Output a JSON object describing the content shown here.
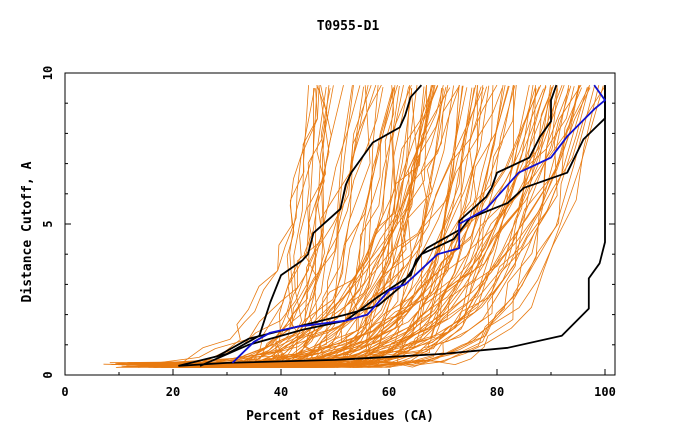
{
  "chart_data": {
    "type": "line",
    "title": "T0955-D1",
    "xlabel": "Percent of Residues (CA)",
    "ylabel": "Distance Cutoff, A",
    "xlim": [
      0,
      100
    ],
    "ylim": [
      0,
      10
    ],
    "x_ticks": [
      "0",
      "20",
      "40",
      "60",
      "80",
      "100"
    ],
    "y_ticks": [
      "0",
      "5",
      "10"
    ],
    "colors": {
      "background_curves": "#e87a10",
      "black_curves": "#000000",
      "highlight_curve": "#1010d0",
      "axis": "#000000"
    },
    "series": [
      {
        "name": "black-curve-1",
        "color": "#000000",
        "points": [
          [
            21,
            0.3
          ],
          [
            30,
            0.7
          ],
          [
            36,
            1.3
          ],
          [
            38,
            2.4
          ],
          [
            40,
            3.3
          ],
          [
            44,
            3.8
          ],
          [
            45,
            4.0
          ],
          [
            46,
            4.7
          ],
          [
            51,
            5.5
          ],
          [
            52,
            6.3
          ],
          [
            53,
            6.7
          ],
          [
            57,
            7.7
          ],
          [
            62,
            8.2
          ],
          [
            63,
            8.6
          ],
          [
            64,
            9.2
          ],
          [
            66,
            9.6
          ]
        ]
      },
      {
        "name": "black-curve-2",
        "color": "#000000",
        "points": [
          [
            25,
            0.3
          ],
          [
            34,
            1.0
          ],
          [
            44,
            1.5
          ],
          [
            52,
            1.8
          ],
          [
            55,
            2.2
          ],
          [
            58,
            2.6
          ],
          [
            64,
            3.3
          ],
          [
            65,
            3.8
          ],
          [
            67,
            4.2
          ],
          [
            73,
            4.8
          ],
          [
            73,
            5.1
          ],
          [
            78,
            5.9
          ],
          [
            79,
            6.2
          ],
          [
            80,
            6.7
          ],
          [
            86,
            7.2
          ],
          [
            88,
            7.9
          ],
          [
            90,
            8.4
          ],
          [
            90,
            9.1
          ],
          [
            91,
            9.6
          ]
        ]
      },
      {
        "name": "black-curve-3",
        "color": "#000000",
        "points": [
          [
            21,
            0.3
          ],
          [
            30,
            0.4
          ],
          [
            50,
            0.5
          ],
          [
            70,
            0.7
          ],
          [
            82,
            0.9
          ],
          [
            92,
            1.3
          ],
          [
            97,
            2.2
          ],
          [
            97,
            3.2
          ],
          [
            99,
            3.7
          ],
          [
            100,
            4.4
          ],
          [
            100,
            5.0
          ],
          [
            100,
            9.6
          ]
        ]
      },
      {
        "name": "black-curve-4",
        "color": "#000000",
        "points": [
          [
            28,
            0.6
          ],
          [
            34,
            1.2
          ],
          [
            43,
            1.6
          ],
          [
            52,
            2.0
          ],
          [
            58,
            2.3
          ],
          [
            62,
            2.9
          ],
          [
            64,
            3.4
          ],
          [
            66,
            4.0
          ],
          [
            72,
            4.5
          ],
          [
            75,
            5.2
          ],
          [
            82,
            5.7
          ],
          [
            85,
            6.2
          ],
          [
            93,
            6.7
          ],
          [
            96,
            7.8
          ],
          [
            100,
            8.5
          ],
          [
            100,
            9.6
          ]
        ]
      },
      {
        "name": "blue-curve",
        "color": "#1010d0",
        "points": [
          [
            31,
            0.4
          ],
          [
            35,
            1.1
          ],
          [
            38,
            1.4
          ],
          [
            43,
            1.6
          ],
          [
            52,
            1.8
          ],
          [
            56,
            2.0
          ],
          [
            60,
            2.8
          ],
          [
            63,
            3.0
          ],
          [
            66,
            3.5
          ],
          [
            69,
            4.0
          ],
          [
            73,
            4.2
          ],
          [
            73,
            5.0
          ],
          [
            78,
            5.5
          ],
          [
            84,
            6.7
          ],
          [
            90,
            7.2
          ],
          [
            93,
            7.9
          ],
          [
            98,
            8.8
          ],
          [
            100,
            9.1
          ],
          [
            98,
            9.6
          ]
        ]
      }
    ]
  }
}
